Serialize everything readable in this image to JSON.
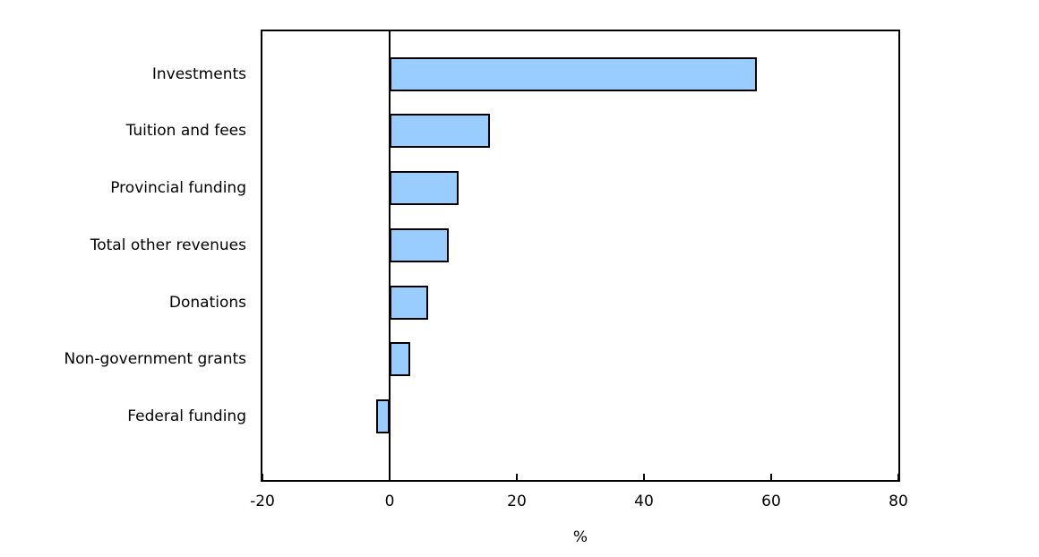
{
  "chart_data": {
    "type": "bar",
    "orientation": "horizontal",
    "title": "",
    "xlabel": "%",
    "ylabel": "",
    "categories": [
      "Investments",
      "Tuition and fees",
      "Provincial funding",
      "Total other revenues",
      "Donations",
      "Non-government grants",
      "Federal funding"
    ],
    "values": [
      57.8,
      15.8,
      10.8,
      9.3,
      6.1,
      3.2,
      -2.1
    ],
    "xlim": [
      -20,
      80
    ],
    "xticks": [
      -20,
      0,
      20,
      40,
      60,
      80
    ],
    "grid": false,
    "legend": null,
    "bar_fill_color": "#99CCFF",
    "bar_border_color": "#000000",
    "axis_color": "#000000"
  }
}
